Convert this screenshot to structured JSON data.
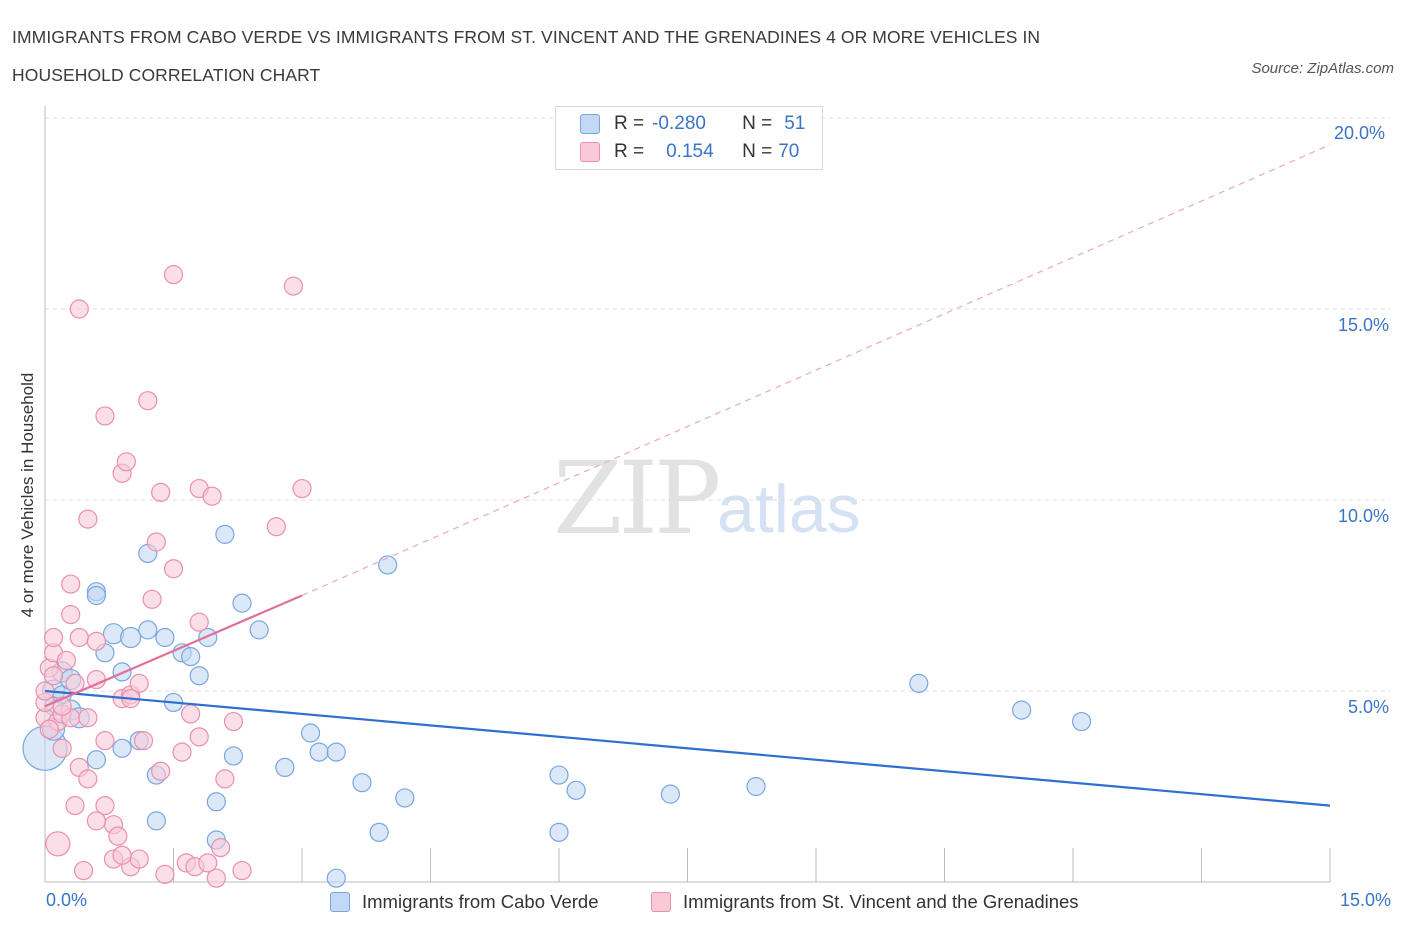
{
  "title": "IMMIGRANTS FROM CABO VERDE VS IMMIGRANTS FROM ST. VINCENT AND THE GRENADINES 4 OR MORE VEHICLES IN HOUSEHOLD CORRELATION CHART",
  "source": "Source: ZipAtlas.com",
  "watermark": {
    "zip": "ZIP",
    "atlas": "atlas"
  },
  "legend": {
    "rows": [
      {
        "r_label": "R =",
        "r_value": "-0.280",
        "n_label": "N =",
        "n_value": "51",
        "color": "#7aa6e0"
      },
      {
        "r_label": "R =",
        "r_value": "0.154",
        "n_label": "N =",
        "n_value": "70",
        "color": "#eb8fac"
      }
    ],
    "series": [
      "Immigrants from Cabo Verde",
      "Immigrants from St. Vincent and the Grenadines"
    ]
  },
  "axes": {
    "ylabel": "4 or more Vehicles in Household",
    "x_min_label": "0.0%",
    "x_max_label": "15.0%",
    "y_ticks": [
      "5.0%",
      "10.0%",
      "15.0%",
      "20.0%"
    ]
  },
  "chart_data": {
    "type": "scatter",
    "title": "IMMIGRANTS FROM CABO VERDE VS IMMIGRANTS FROM ST. VINCENT AND THE GRENADINES 4 OR MORE VEHICLES IN HOUSEHOLD CORRELATION CHART",
    "xlabel": "",
    "ylabel": "4 or more Vehicles in Household",
    "xlim": [
      0,
      15
    ],
    "ylim": [
      0,
      20
    ],
    "grid": true,
    "series": [
      {
        "name": "Immigrants from Cabo Verde",
        "color": "#7aa6e0",
        "fill": "#c3d8f4",
        "trend": {
          "x": [
            0,
            15
          ],
          "y": [
            5.0,
            2.0
          ],
          "style": "solid",
          "color": "#2e6fcf"
        },
        "points": [
          [
            0.0,
            3.5,
            22
          ],
          [
            0.1,
            4.0,
            11
          ],
          [
            0.1,
            5.0,
            11
          ],
          [
            0.2,
            5.5,
            10
          ],
          [
            0.2,
            4.9,
            9
          ],
          [
            0.3,
            5.3,
            10
          ],
          [
            0.3,
            4.5,
            10
          ],
          [
            0.4,
            4.3,
            10
          ],
          [
            0.6,
            7.6,
            9
          ],
          [
            0.6,
            7.5,
            9
          ],
          [
            0.6,
            3.2,
            9
          ],
          [
            0.7,
            6.0,
            9
          ],
          [
            0.8,
            6.5,
            10
          ],
          [
            0.9,
            5.5,
            9
          ],
          [
            0.9,
            3.5,
            9
          ],
          [
            1.0,
            6.4,
            10
          ],
          [
            1.1,
            3.7,
            9
          ],
          [
            1.2,
            8.6,
            9
          ],
          [
            1.2,
            6.6,
            9
          ],
          [
            1.3,
            2.8,
            9
          ],
          [
            1.3,
            1.6,
            9
          ],
          [
            1.4,
            6.4,
            9
          ],
          [
            1.5,
            4.7,
            9
          ],
          [
            1.6,
            6.0,
            9
          ],
          [
            1.7,
            5.9,
            9
          ],
          [
            1.8,
            5.4,
            9
          ],
          [
            1.9,
            6.4,
            9
          ],
          [
            2.0,
            1.1,
            9
          ],
          [
            2.0,
            2.1,
            9
          ],
          [
            2.1,
            9.1,
            9
          ],
          [
            2.2,
            3.3,
            9
          ],
          [
            2.3,
            7.3,
            9
          ],
          [
            2.5,
            6.6,
            9
          ],
          [
            2.8,
            3.0,
            9
          ],
          [
            3.1,
            3.9,
            9
          ],
          [
            3.2,
            3.4,
            9
          ],
          [
            3.4,
            3.4,
            9
          ],
          [
            3.4,
            0.1,
            9
          ],
          [
            3.7,
            2.6,
            9
          ],
          [
            3.9,
            1.3,
            9
          ],
          [
            4.0,
            8.3,
            9
          ],
          [
            4.2,
            2.2,
            9
          ],
          [
            6.0,
            1.3,
            9
          ],
          [
            6.0,
            2.8,
            9
          ],
          [
            6.2,
            2.4,
            9
          ],
          [
            7.3,
            2.3,
            9
          ],
          [
            8.3,
            2.5,
            9
          ],
          [
            10.2,
            5.2,
            9
          ],
          [
            11.4,
            4.5,
            9
          ],
          [
            12.1,
            4.2,
            9
          ],
          [
            0.1,
            4.6,
            9
          ]
        ]
      },
      {
        "name": "Immigrants from St. Vincent and the Grenadines",
        "color": "#eb8fac",
        "fill": "#f9c9d8",
        "trend": {
          "x": [
            0,
            3.0
          ],
          "y": [
            4.6,
            7.5
          ],
          "style": "solid",
          "dashed_extension": {
            "x": [
              3.0,
              15
            ],
            "y": [
              7.5,
              19.3
            ]
          },
          "color": "#e0709a"
        },
        "points": [
          [
            0.0,
            4.3,
            9
          ],
          [
            0.0,
            4.7,
            9
          ],
          [
            0.0,
            5.0,
            9
          ],
          [
            0.05,
            5.6,
            9
          ],
          [
            0.1,
            6.0,
            9
          ],
          [
            0.1,
            6.4,
            9
          ],
          [
            0.15,
            4.2,
            9
          ],
          [
            0.15,
            1.0,
            12
          ],
          [
            0.2,
            4.4,
            9
          ],
          [
            0.2,
            3.5,
            9
          ],
          [
            0.25,
            5.8,
            9
          ],
          [
            0.3,
            7.0,
            9
          ],
          [
            0.3,
            7.8,
            9
          ],
          [
            0.3,
            4.3,
            9
          ],
          [
            0.35,
            2.0,
            9
          ],
          [
            0.35,
            5.2,
            9
          ],
          [
            0.4,
            6.4,
            9
          ],
          [
            0.4,
            3.0,
            9
          ],
          [
            0.4,
            15.0,
            9
          ],
          [
            0.45,
            0.3,
            9
          ],
          [
            0.5,
            9.5,
            9
          ],
          [
            0.5,
            4.3,
            9
          ],
          [
            0.6,
            6.3,
            9
          ],
          [
            0.6,
            5.3,
            9
          ],
          [
            0.7,
            3.7,
            9
          ],
          [
            0.7,
            12.2,
            9
          ],
          [
            0.7,
            2.0,
            9
          ],
          [
            0.8,
            0.6,
            9
          ],
          [
            0.8,
            1.5,
            9
          ],
          [
            0.85,
            1.2,
            9
          ],
          [
            0.9,
            10.7,
            9
          ],
          [
            0.9,
            4.8,
            9
          ],
          [
            0.95,
            11.0,
            9
          ],
          [
            1.0,
            4.9,
            9
          ],
          [
            1.0,
            0.4,
            9
          ],
          [
            1.1,
            5.2,
            9
          ],
          [
            1.1,
            0.6,
            9
          ],
          [
            1.15,
            3.7,
            9
          ],
          [
            1.2,
            12.6,
            9
          ],
          [
            1.25,
            7.4,
            9
          ],
          [
            1.3,
            8.9,
            9
          ],
          [
            1.35,
            2.9,
            9
          ],
          [
            1.35,
            10.2,
            9
          ],
          [
            1.4,
            0.2,
            9
          ],
          [
            1.5,
            8.2,
            9
          ],
          [
            1.5,
            15.9,
            9
          ],
          [
            1.6,
            3.4,
            9
          ],
          [
            1.65,
            0.5,
            9
          ],
          [
            1.7,
            4.4,
            9
          ],
          [
            1.75,
            0.4,
            9
          ],
          [
            1.8,
            6.8,
            9
          ],
          [
            1.8,
            3.8,
            9
          ],
          [
            1.8,
            10.3,
            9
          ],
          [
            1.9,
            0.5,
            9
          ],
          [
            1.95,
            10.1,
            9
          ],
          [
            2.0,
            0.1,
            9
          ],
          [
            2.05,
            0.9,
            9
          ],
          [
            2.1,
            2.7,
            9
          ],
          [
            2.2,
            4.2,
            9
          ],
          [
            2.3,
            0.3,
            9
          ],
          [
            2.7,
            9.3,
            9
          ],
          [
            2.9,
            15.6,
            9
          ],
          [
            3.0,
            10.3,
            9
          ],
          [
            0.6,
            1.6,
            9
          ],
          [
            0.1,
            5.4,
            9
          ],
          [
            0.2,
            4.6,
            9
          ],
          [
            1.0,
            4.8,
            9
          ],
          [
            0.5,
            2.7,
            9
          ],
          [
            0.05,
            4.0,
            9
          ],
          [
            0.9,
            0.7,
            9
          ]
        ]
      }
    ]
  }
}
